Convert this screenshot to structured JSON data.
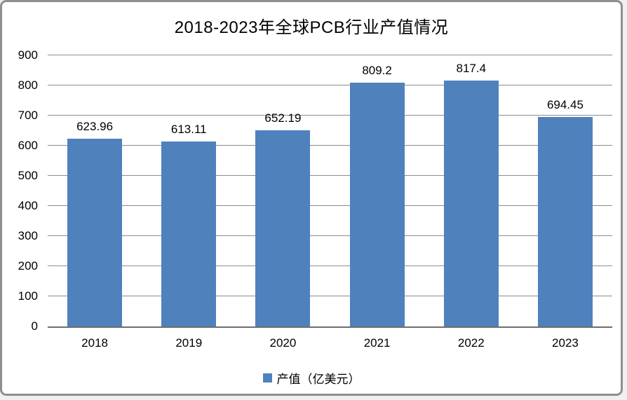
{
  "window": {
    "background": "#ffffff",
    "border_color": "#8f8f8f"
  },
  "chart_data": {
    "type": "bar",
    "title": "2018-2023年全球PCB行业产值情况",
    "categories": [
      "2018",
      "2019",
      "2020",
      "2021",
      "2022",
      "2023"
    ],
    "series": [
      {
        "name": "产值（亿美元）",
        "values": [
          623.96,
          613.11,
          652.19,
          809.2,
          817.4,
          694.45
        ],
        "value_labels": [
          "623.96",
          "613.11",
          "652.19",
          "809.2",
          "817.4",
          "694.45"
        ],
        "color": "#4F81BD"
      }
    ],
    "ylim": [
      0,
      900
    ],
    "yticks": [
      0,
      100,
      200,
      300,
      400,
      500,
      600,
      700,
      800,
      900
    ],
    "xlabel": "",
    "ylabel": "",
    "grid": "horizontal",
    "gridline_color": "#8c8c8c",
    "axis_line_color": "#6e6e6e",
    "legend": {
      "label": "产值（亿美元）",
      "position": "bottom-center",
      "swatch_color": "#4F81BD"
    }
  }
}
